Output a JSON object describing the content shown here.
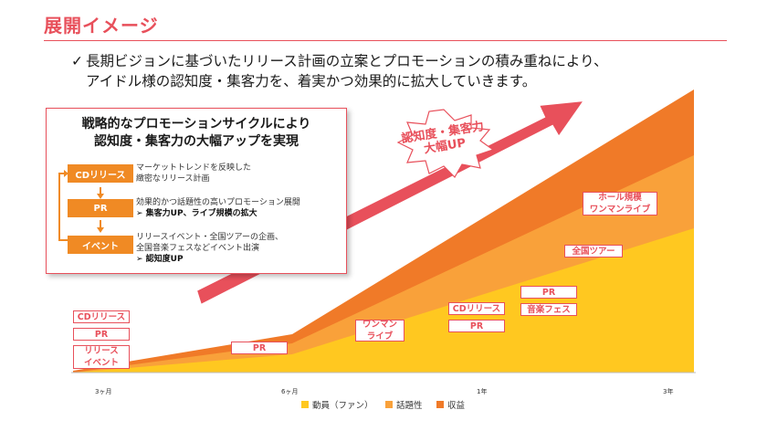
{
  "page_title": "展開イメージ",
  "lead": {
    "check": "✓",
    "line1": "長期ビジョンに基づいたリリース計画の立案とプロモーションの積み重ねにより、",
    "line2": "アイドル様の認知度・集客力を、着実かつ効果的に拡大していきます。"
  },
  "panel": {
    "title_line1": "戦略的なプロモーションサイクルにより",
    "title_line2": "認知度・集客力の大幅アップを実現",
    "steps": [
      {
        "label": "CDリリース",
        "desc1": "マーケットトレンドを反映した",
        "desc2": "緻密なリリース計画",
        "point": ""
      },
      {
        "label": "PR",
        "desc1": "効果的かつ話題性の高いプロモーション展開",
        "desc2": "",
        "point": "➢ 集客力UP、ライブ規模の拡大"
      },
      {
        "label": "イベント",
        "desc1": "リリースイベント・全国ツアーの企画、",
        "desc2": "全国音楽フェスなどイベント出演",
        "point": "➢ 認知度UP"
      }
    ]
  },
  "callout": {
    "line1": "認知度・集客力",
    "line2": "大幅UP"
  },
  "chart": {
    "area_colors": {
      "mobilization": "#ffc820",
      "buzz": "#f9a13a",
      "revenue": "#f07a28"
    },
    "arrow_color": "#e8505b",
    "labels": {
      "cd_release_start": "CDリリース",
      "pr_start": "PR",
      "release_event": "リリース\nイベント",
      "pr_6m": "PR",
      "oneman_live": "ワンマン\nライブ",
      "cd_release_1y": "CDリリース",
      "pr_1y": "PR",
      "pr_fes": "PR",
      "music_fes": "音楽フェス",
      "national_tour": "全国ツアー",
      "hall_oneman": "ホール規模\nワンマンライブ"
    }
  },
  "axis": {
    "t0": "3ヶ月",
    "t1": "6ヶ月",
    "t2": "1年",
    "t3": "3年"
  },
  "legend": [
    {
      "label": "動員（ファン）",
      "color": "#ffc820"
    },
    {
      "label": "話題性",
      "color": "#f9a13a"
    },
    {
      "label": "収益",
      "color": "#f07a28"
    }
  ]
}
